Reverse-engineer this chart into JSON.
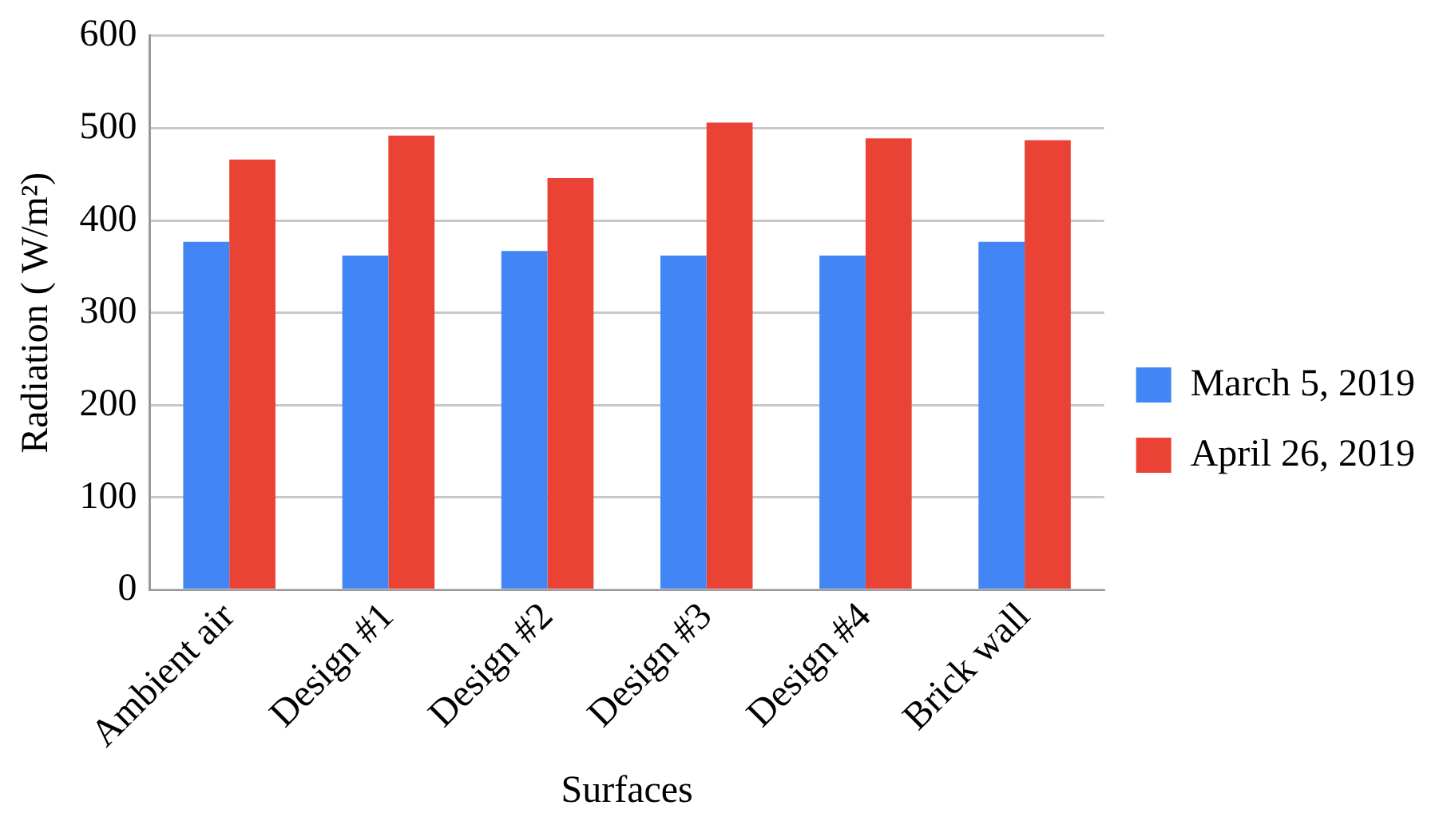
{
  "chart_data": {
    "type": "bar",
    "xlabel": "Surfaces",
    "ylabel": "Radiation ( W/m²)",
    "categories": [
      "Ambient air",
      "Design #1",
      "Design #2",
      "Design #3",
      "Design #4",
      "Brick wall"
    ],
    "series": [
      {
        "name": "March 5, 2019",
        "color": "#4285f4",
        "values": [
          377,
          362,
          367,
          362,
          362,
          377
        ]
      },
      {
        "name": "April 26, 2019",
        "color": "#ea4335",
        "values": [
          466,
          492,
          446,
          506,
          489,
          487
        ]
      }
    ],
    "ylim": [
      0,
      600
    ],
    "yticks": [
      0,
      100,
      200,
      300,
      400,
      500,
      600
    ],
    "grid": "y",
    "legend": "right"
  }
}
